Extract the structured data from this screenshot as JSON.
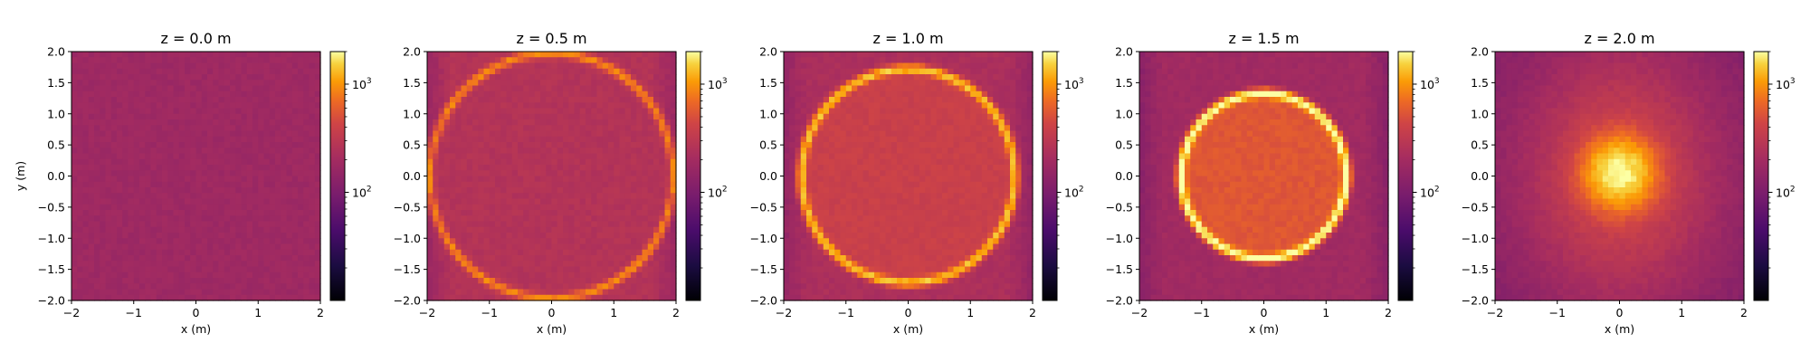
{
  "chart_data": {
    "type": "heatmap",
    "colormap": "inferno",
    "colorbar": {
      "scale": "log",
      "vmin": 10,
      "vmax": 2000,
      "tick_values": [
        100,
        1000
      ],
      "tick_labels": [
        {
          "base": "10",
          "exp": "2"
        },
        {
          "base": "10",
          "exp": "3"
        }
      ]
    },
    "xlabel": "x (m)",
    "ylabel": "y (m)",
    "xlim": [
      -2,
      2
    ],
    "ylim": [
      -2,
      2
    ],
    "x_ticks": [
      "−2",
      "−1",
      "0",
      "1",
      "2"
    ],
    "x_tick_values": [
      -2,
      -1,
      0,
      1,
      2
    ],
    "y_ticks": [
      "2.0",
      "1.5",
      "1.0",
      "0.5",
      "0.0",
      "−0.5",
      "−1.0",
      "−1.5",
      "−2.0"
    ],
    "y_tick_values": [
      2.0,
      1.5,
      1.0,
      0.5,
      0.0,
      -0.5,
      -1.0,
      -1.5,
      -2.0
    ],
    "panels": [
      {
        "title": "z = 0.0 m",
        "z": 0.0,
        "background": 180,
        "ring_radius": null,
        "ring_peak": 0,
        "interior": 180,
        "central_peak": 0,
        "show_ylabel": true
      },
      {
        "title": "z = 0.5 m",
        "z": 0.5,
        "background": 260,
        "ring_radius": 1.97,
        "ring_peak": 650,
        "interior": 260,
        "central_peak": 0,
        "show_ylabel": false
      },
      {
        "title": "z = 1.0 m",
        "z": 1.0,
        "background": 230,
        "ring_radius": 1.72,
        "ring_peak": 1100,
        "interior": 380,
        "central_peak": 0,
        "show_ylabel": false
      },
      {
        "title": "z = 1.5 m",
        "z": 1.5,
        "background": 190,
        "ring_radius": 1.33,
        "ring_peak": 1800,
        "interior": 550,
        "central_peak": 0,
        "show_ylabel": false
      },
      {
        "title": "z = 2.0 m",
        "z": 2.0,
        "background": 110,
        "ring_radius": null,
        "ring_peak": 0,
        "interior": 300,
        "central_peak": 1600,
        "show_ylabel": false
      }
    ]
  }
}
